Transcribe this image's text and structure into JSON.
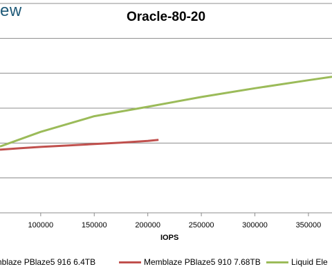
{
  "logo_text": "ew",
  "chart_data": {
    "type": "line",
    "title": "Oracle-80-20",
    "xlabel": "IOPS",
    "ylabel": "",
    "x_ticks": [
      "100000",
      "150000",
      "200000",
      "250000",
      "300000",
      "350000"
    ],
    "xlim": [
      62000,
      372000
    ],
    "ylim": [
      0,
      6
    ],
    "grid": true,
    "legend_position": "bottom",
    "series": [
      {
        "name": "emblaze PBlaze5 916 6.4TB",
        "color": "#4f81bd",
        "x": [],
        "y": []
      },
      {
        "name": "Memblaze PBlaze5 910 7.68TB",
        "color": "#c0504d",
        "x": [
          62000,
          80000,
          100000,
          125000,
          150000,
          175000,
          200000,
          210000
        ],
        "y": [
          1.81,
          1.85,
          1.89,
          1.93,
          1.97,
          2.01,
          2.06,
          2.09
        ]
      },
      {
        "name": "Liquid Ele",
        "color": "#9bbb59",
        "x": [
          62000,
          100000,
          150000,
          200000,
          250000,
          300000,
          350000,
          372000
        ],
        "y": [
          1.9,
          2.32,
          2.77,
          3.04,
          3.32,
          3.57,
          3.8,
          3.9
        ]
      }
    ]
  }
}
